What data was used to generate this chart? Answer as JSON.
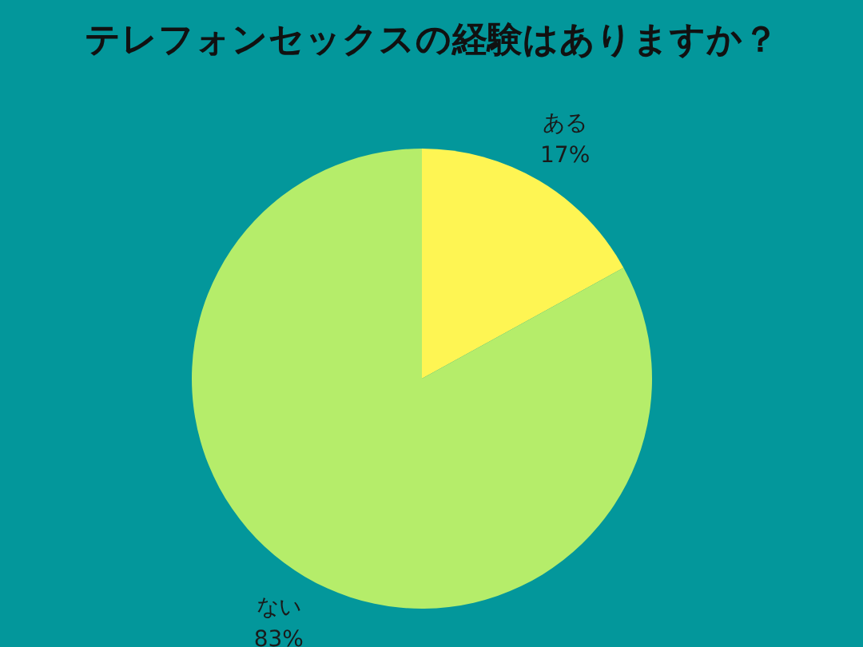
{
  "chart_data": {
    "type": "pie",
    "title": "テレフォンセックスの経験はありますか？",
    "categories": [
      "ある",
      "ない"
    ],
    "values": [
      17,
      83
    ],
    "colors": [
      "#fef553",
      "#b5ed6a"
    ],
    "value_labels": [
      "17%",
      "83%"
    ]
  }
}
